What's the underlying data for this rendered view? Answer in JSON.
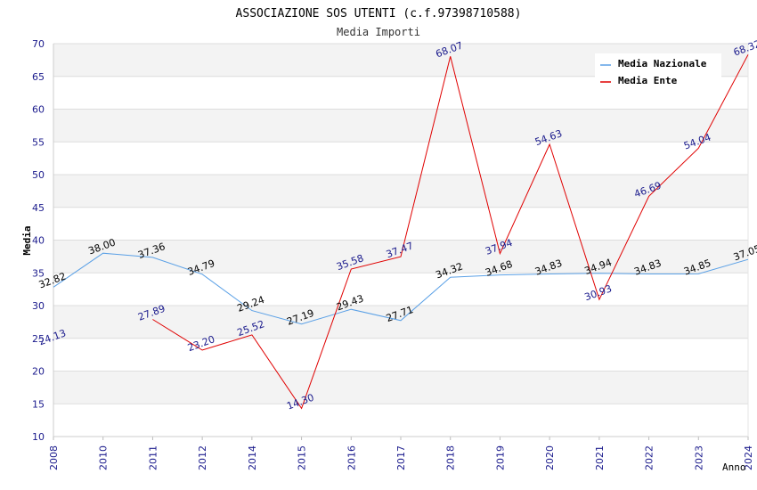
{
  "chart_data": {
    "type": "line",
    "title": "ASSOCIAZIONE SOS UTENTI (c.f.97398710588)",
    "subtitle": "Media Importi",
    "xlabel": "Anno",
    "ylabel": "Media",
    "ylim": [
      10,
      70
    ],
    "yticks": [
      "10",
      "15",
      "20",
      "25",
      "30",
      "35",
      "40",
      "45",
      "50",
      "55",
      "60",
      "65",
      "70"
    ],
    "categories": [
      "2008",
      "2010",
      "2011",
      "2012",
      "2014",
      "2015",
      "2016",
      "2017",
      "2018",
      "2019",
      "2020",
      "2021",
      "2022",
      "2023",
      "2024"
    ],
    "grid": true,
    "legend_position": "top-right",
    "series": [
      {
        "name": "Media Nazionale",
        "color": "#5aa0e6",
        "label_color": "#000000",
        "values": [
          32.82,
          38.0,
          37.36,
          34.79,
          29.24,
          27.19,
          29.43,
          27.71,
          34.32,
          34.68,
          34.83,
          34.94,
          34.83,
          34.85,
          37.05
        ],
        "labels": [
          "32.82",
          "38.00",
          "37.36",
          "34.79",
          "29.24",
          "27.19",
          "29.43",
          "27.71",
          "34.32",
          "34.68",
          "34.83",
          "34.94",
          "34.83",
          "34.85",
          "37.05"
        ]
      },
      {
        "name": "Media Ente",
        "color": "#e00000",
        "label_color": "#1a1a8c",
        "values": [
          24.13,
          null,
          27.89,
          23.2,
          25.52,
          14.3,
          35.58,
          37.47,
          68.07,
          37.94,
          54.63,
          30.93,
          46.69,
          54.04,
          68.32
        ],
        "labels": [
          "24.13",
          "",
          "27.89",
          "23.20",
          "25.52",
          "14.30",
          "35.58",
          "37.47",
          "68.07",
          "37.94",
          "54.63",
          "30.93",
          "46.69",
          "54.04",
          "68.32"
        ]
      }
    ]
  }
}
